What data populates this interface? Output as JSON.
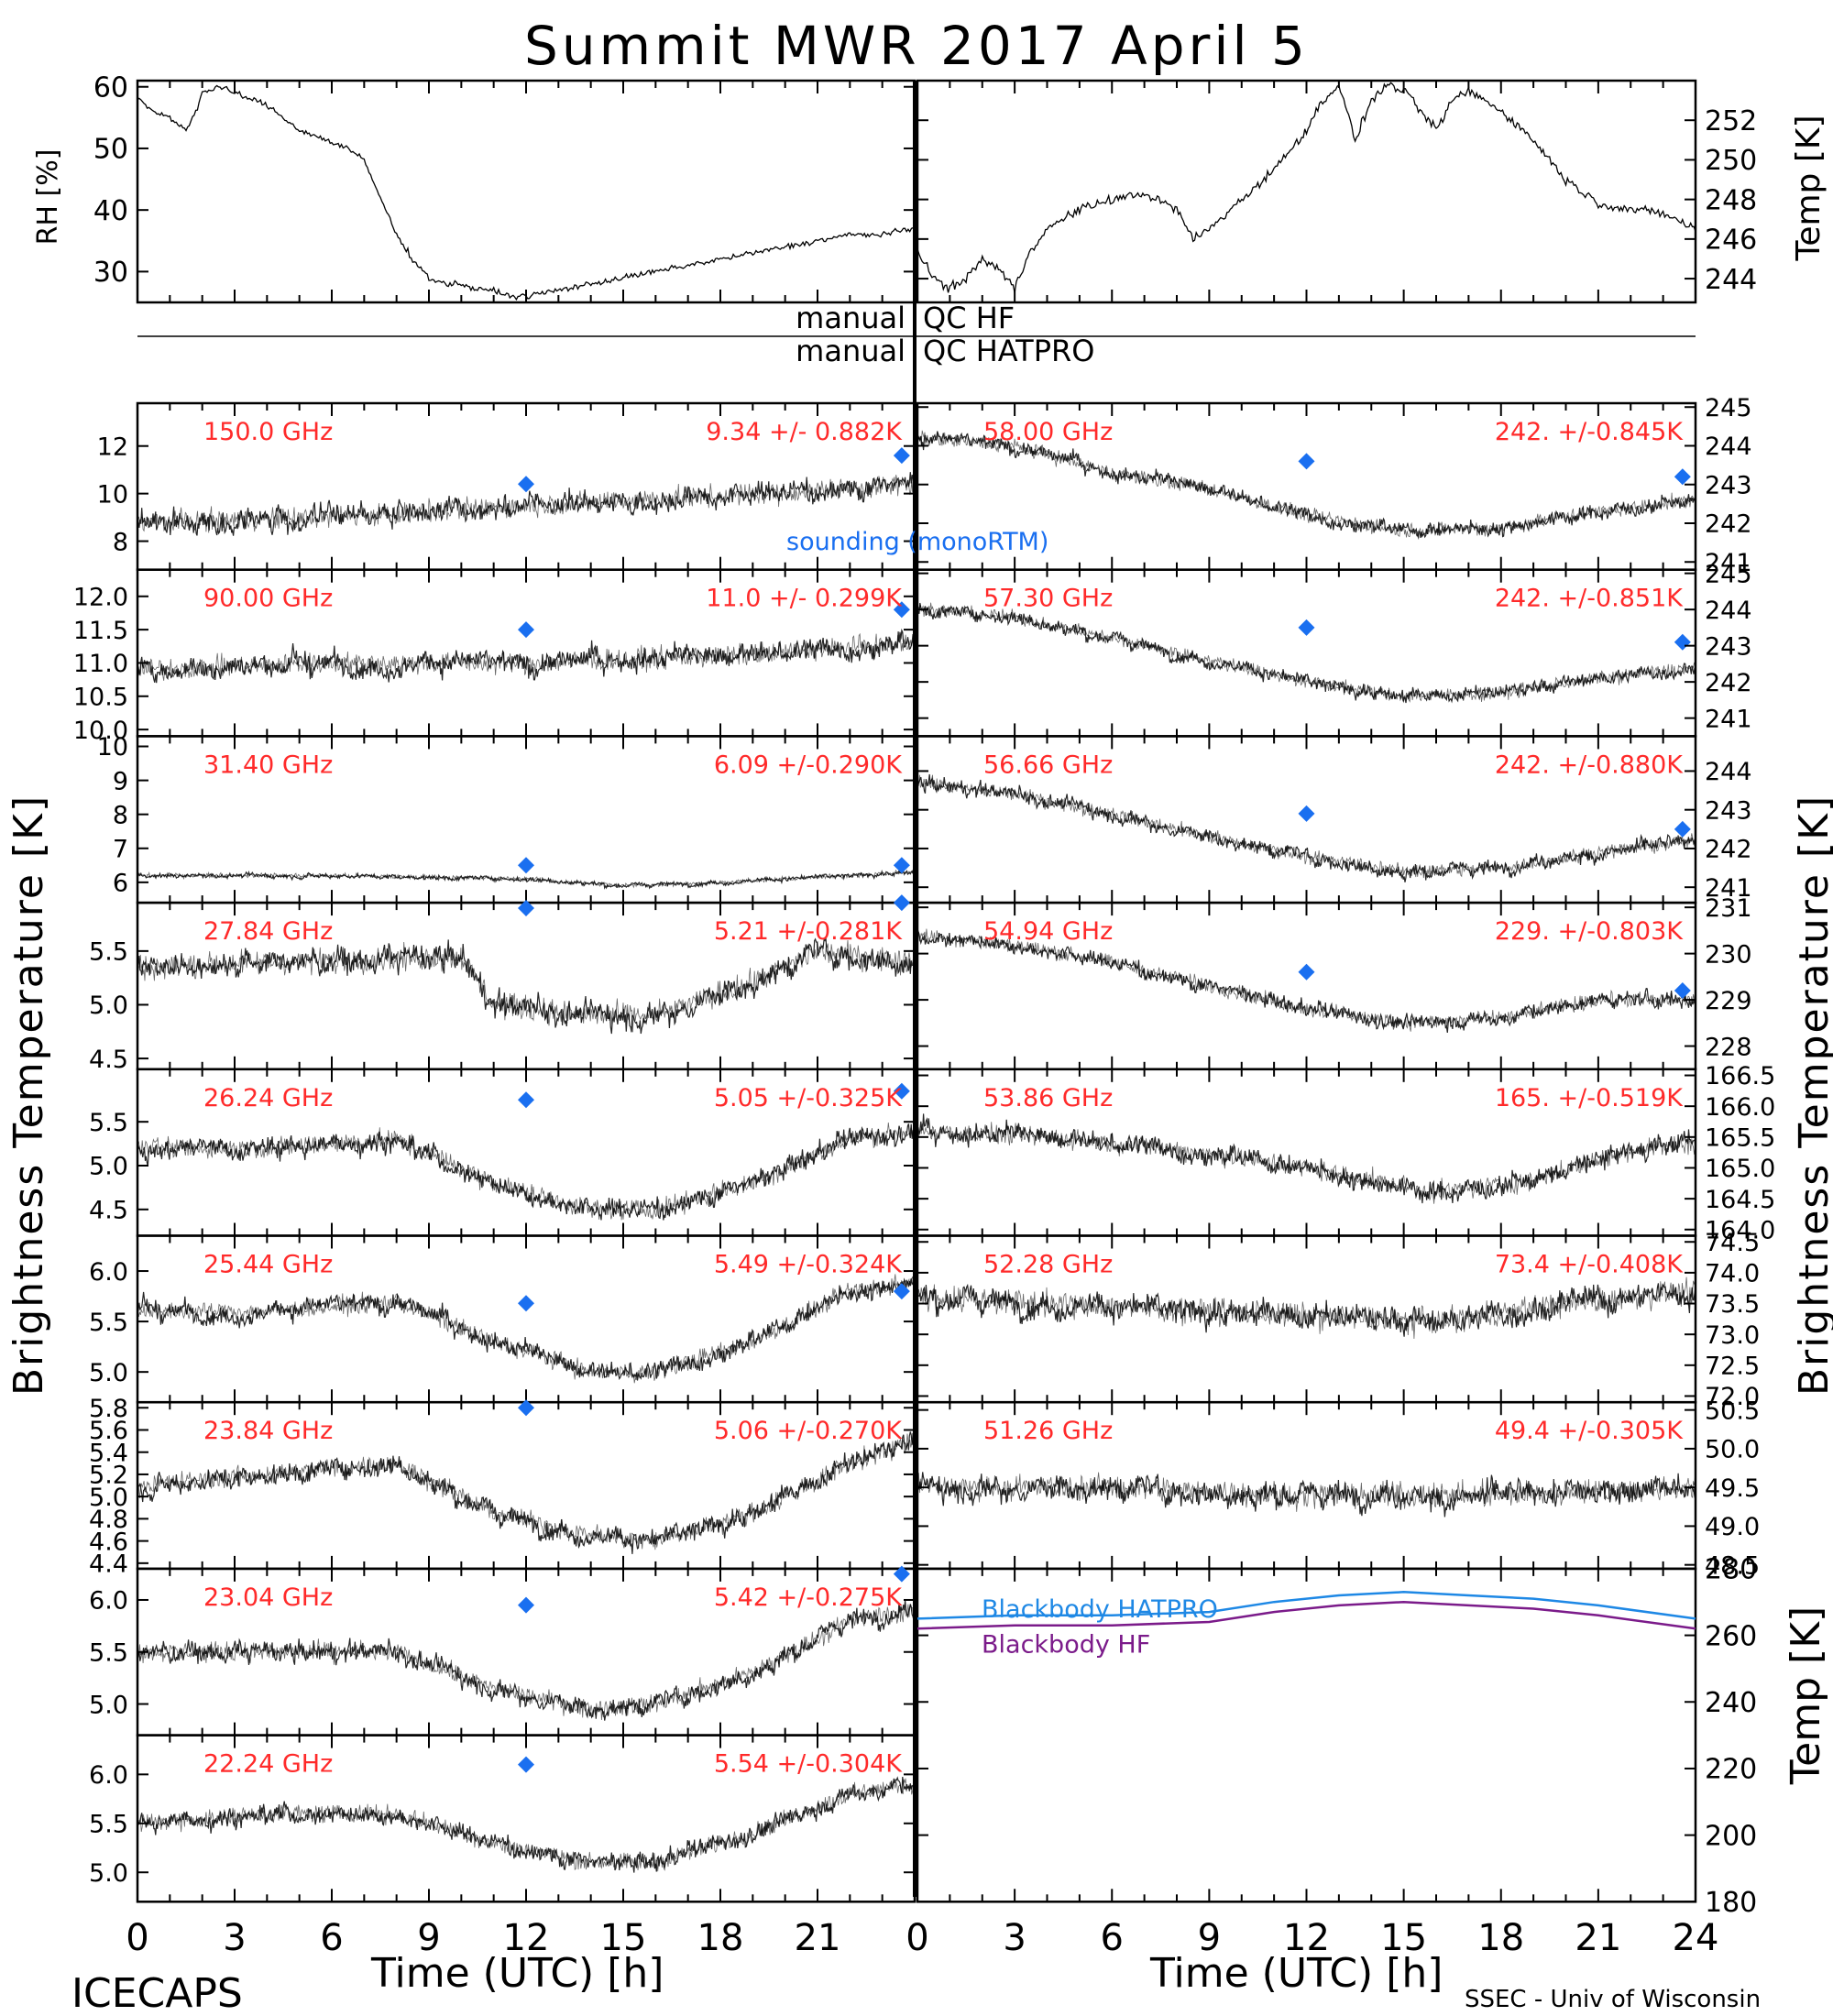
{
  "title": "Summit MWR 2017 April  5",
  "footer": {
    "left": "ICECAPS",
    "right": "SSEC - Univ of Wisconsin",
    "xlabel": "Time (UTC) [h]"
  },
  "side_labels": {
    "left_bt": "Brightness Temperature [K]",
    "right_bt": "Brightness Temperature [K]",
    "top_left": "RH [%]",
    "top_right": "Temp [K]",
    "bottom_right": "Temp [K]"
  },
  "qc": {
    "row1_left": "manual",
    "row1_right": "QC HF",
    "row2_left": "manual",
    "row2_right": "QC HATPRO"
  },
  "colors": {
    "axis": "#000000",
    "annotation": "#ff2a2a",
    "sounding": "#1a6ff0",
    "blackbody_hatpro": "#1e88e5",
    "blackbody_hf": "#7b1b8a"
  },
  "chart_data": [
    {
      "id": "met-rh",
      "type": "line",
      "ylabel": "RH [%]",
      "xlim": [
        0,
        12
      ],
      "ylim": [
        25,
        61
      ],
      "yticks": [
        30,
        40,
        50,
        60
      ],
      "x": [
        0,
        0.5,
        1,
        1.5,
        1.8,
        2,
        2.5,
        3,
        3.5,
        4,
        5,
        6,
        6.5,
        7,
        7.5,
        8,
        8.5,
        9,
        9.5,
        10,
        10.5,
        11,
        11.5,
        12
      ],
      "y": [
        58,
        56,
        55,
        53,
        56,
        59,
        60,
        59,
        58,
        57,
        53,
        51,
        50,
        48,
        42,
        36,
        32,
        29,
        28,
        28,
        27,
        27,
        26,
        26
      ]
    },
    {
      "id": "met-rh-right",
      "type": "line",
      "xlim": [
        12,
        24
      ],
      "ylim": [
        25,
        61
      ],
      "x": [
        12,
        13,
        14,
        15,
        16,
        17,
        18,
        19,
        20,
        21,
        22,
        23,
        24
      ],
      "y": [
        26,
        27,
        28,
        29,
        30,
        31,
        32,
        33,
        34,
        35,
        36,
        36,
        37
      ]
    },
    {
      "id": "met-temp",
      "type": "line",
      "ylabel": "Temp [K]",
      "xlim": [
        0,
        24
      ],
      "ylim": [
        242.8,
        254
      ],
      "yticks": [
        244,
        246,
        248,
        250,
        252
      ],
      "x": [
        0,
        0.5,
        1,
        1.5,
        2,
        2.5,
        3,
        3.5,
        4,
        5,
        6,
        7,
        8,
        8.5,
        9,
        10,
        11,
        12,
        12.5,
        13,
        13.5,
        14,
        14.5,
        15,
        16,
        16.5,
        17,
        18,
        19,
        20,
        21,
        22,
        23,
        24
      ],
      "y": [
        245.5,
        244,
        243.5,
        244,
        245,
        244.5,
        243.5,
        245.5,
        246.5,
        247.5,
        248,
        248.3,
        247.5,
        246,
        246.5,
        248,
        249.5,
        251.5,
        253,
        253.8,
        251,
        253,
        253.8,
        253.5,
        251.5,
        253,
        253.5,
        252.5,
        251,
        249,
        247.8,
        247.5,
        247.3,
        246.5
      ]
    },
    {
      "id": "ch-150",
      "type": "scatter",
      "label": "150.0 GHz",
      "stat": "9.34 +/- 0.882K",
      "ylim": [
        6.8,
        13.8
      ],
      "yticks": [
        8,
        10,
        12
      ],
      "noise": 1.0,
      "trend": {
        "x": [
          0,
          6,
          12,
          18,
          24
        ],
        "y": [
          8.8,
          9.0,
          9.5,
          9.9,
          10.4
        ]
      },
      "sounding": [
        [
          12,
          10.4
        ],
        [
          23.6,
          11.6
        ]
      ]
    },
    {
      "id": "ch-90",
      "type": "scatter",
      "label": "90.00 GHz",
      "stat": "11.0 +/- 0.299K",
      "ylim": [
        9.9,
        12.4
      ],
      "yticks": [
        10.0,
        10.5,
        11.0,
        11.5,
        12.0
      ],
      "noise": 0.35,
      "trend": {
        "x": [
          0,
          6,
          12,
          18,
          24
        ],
        "y": [
          10.9,
          11.0,
          11.0,
          11.1,
          11.3
        ]
      },
      "sounding": [
        [
          12,
          11.5
        ],
        [
          23.6,
          11.8
        ]
      ]
    },
    {
      "id": "ch-31",
      "type": "scatter",
      "label": "31.40 GHz",
      "stat": "6.09 +/-0.290K",
      "ylim": [
        5.4,
        10.3
      ],
      "yticks": [
        6,
        7,
        8,
        9,
        10
      ],
      "noise": 0.15,
      "trend": {
        "x": [
          0,
          6,
          12,
          15,
          18,
          24
        ],
        "y": [
          6.2,
          6.2,
          6.1,
          5.9,
          6.0,
          6.3
        ]
      },
      "sounding": [
        [
          12,
          6.5
        ],
        [
          23.6,
          6.5
        ]
      ]
    },
    {
      "id": "ch-27",
      "type": "scatter",
      "label": "27.84 GHz",
      "stat": "5.21 +/-0.281K",
      "ylim": [
        4.4,
        5.95
      ],
      "yticks": [
        4.5,
        5.0,
        5.5
      ],
      "noise": 0.25,
      "trend": {
        "x": [
          0,
          5,
          10,
          11,
          14,
          16,
          19,
          21,
          24
        ],
        "y": [
          5.35,
          5.4,
          5.45,
          5.0,
          4.9,
          4.9,
          5.2,
          5.5,
          5.4
        ]
      },
      "sounding": [
        [
          12,
          5.9
        ],
        [
          23.6,
          5.95
        ]
      ]
    },
    {
      "id": "ch-26",
      "type": "scatter",
      "label": "26.24 GHz",
      "stat": "5.05 +/-0.325K",
      "ylim": [
        4.2,
        6.1
      ],
      "yticks": [
        4.5,
        5.0,
        5.5
      ],
      "noise": 0.25,
      "trend": {
        "x": [
          0,
          4,
          8,
          11,
          14,
          16,
          19,
          22,
          24
        ],
        "y": [
          5.2,
          5.2,
          5.3,
          4.8,
          4.5,
          4.5,
          4.8,
          5.3,
          5.4
        ]
      },
      "sounding": [
        [
          12,
          5.75
        ],
        [
          23.6,
          5.85
        ]
      ]
    },
    {
      "id": "ch-25",
      "type": "scatter",
      "label": "25.44 GHz",
      "stat": "5.49 +/-0.324K",
      "ylim": [
        4.7,
        6.35
      ],
      "yticks": [
        5.0,
        5.5,
        6.0
      ],
      "noise": 0.2,
      "trend": {
        "x": [
          0,
          4,
          8,
          11,
          14,
          16,
          19,
          22,
          24
        ],
        "y": [
          5.6,
          5.6,
          5.7,
          5.3,
          5.0,
          5.0,
          5.3,
          5.8,
          5.9
        ]
      },
      "sounding": [
        [
          12,
          5.68
        ],
        [
          23.6,
          5.8
        ]
      ]
    },
    {
      "id": "ch-23-8",
      "type": "scatter",
      "label": "23.84 GHz",
      "stat": "5.06 +/-0.270K",
      "ylim": [
        4.35,
        5.85
      ],
      "yticks": [
        4.4,
        4.6,
        4.8,
        5.0,
        5.2,
        5.4,
        5.6,
        5.8
      ],
      "noise": 0.2,
      "trend": {
        "x": [
          0,
          4,
          8,
          11,
          14,
          16,
          19,
          22,
          24
        ],
        "y": [
          5.1,
          5.2,
          5.3,
          4.85,
          4.65,
          4.6,
          4.85,
          5.3,
          5.5
        ]
      },
      "sounding": [
        [
          12,
          5.8
        ]
      ]
    },
    {
      "id": "ch-23-0",
      "type": "scatter",
      "label": "23.04 GHz",
      "stat": "5.42 +/-0.275K",
      "ylim": [
        4.7,
        6.3
      ],
      "yticks": [
        5.0,
        5.5,
        6.0
      ],
      "noise": 0.2,
      "trend": {
        "x": [
          0,
          4,
          8,
          11,
          14,
          16,
          19,
          22,
          24
        ],
        "y": [
          5.5,
          5.5,
          5.5,
          5.15,
          4.95,
          5.0,
          5.3,
          5.8,
          5.9
        ]
      },
      "sounding": [
        [
          12,
          5.95
        ],
        [
          23.6,
          6.25
        ]
      ]
    },
    {
      "id": "ch-22",
      "type": "scatter",
      "label": "22.24 GHz",
      "stat": "5.54 +/-0.304K",
      "ylim": [
        4.7,
        6.4
      ],
      "yticks": [
        5.0,
        5.5,
        6.0
      ],
      "noise": 0.2,
      "trend": {
        "x": [
          0,
          4,
          8,
          11,
          14,
          16,
          19,
          22,
          24
        ],
        "y": [
          5.5,
          5.6,
          5.6,
          5.3,
          5.1,
          5.1,
          5.4,
          5.8,
          5.9
        ]
      },
      "sounding": [
        [
          12,
          6.1
        ]
      ]
    },
    {
      "id": "ch-58",
      "type": "scatter",
      "label": "58.00 GHz",
      "stat": "242. +/-0.845K",
      "ylim": [
        240.8,
        245.1
      ],
      "yticks": [
        241,
        242,
        243,
        244,
        245
      ],
      "noise": 0.4,
      "trend": {
        "x": [
          0,
          3,
          6,
          9,
          12,
          15,
          18,
          21,
          24
        ],
        "y": [
          244.2,
          244.0,
          243.3,
          242.9,
          242.2,
          241.8,
          241.9,
          242.3,
          242.6
        ]
      },
      "sounding": [
        [
          12,
          243.6
        ],
        [
          23.6,
          243.2
        ]
      ]
    },
    {
      "id": "ch-57",
      "type": "scatter",
      "label": "57.30 GHz",
      "stat": "242. +/-0.851K",
      "ylim": [
        240.5,
        245.1
      ],
      "yticks": [
        241,
        242,
        243,
        244,
        245
      ],
      "noise": 0.4,
      "trend": {
        "x": [
          0,
          3,
          6,
          9,
          12,
          15,
          18,
          21,
          24
        ],
        "y": [
          244.0,
          243.8,
          243.2,
          242.6,
          242.0,
          241.6,
          241.7,
          242.1,
          242.4
        ]
      },
      "sounding": [
        [
          12,
          243.5
        ],
        [
          23.6,
          243.1
        ]
      ]
    },
    {
      "id": "ch-56",
      "type": "scatter",
      "label": "56.66 GHz",
      "stat": "242. +/-0.880K",
      "ylim": [
        240.6,
        244.9
      ],
      "yticks": [
        241,
        242,
        243,
        244
      ],
      "noise": 0.4,
      "trend": {
        "x": [
          0,
          3,
          6,
          9,
          12,
          15,
          18,
          21,
          24
        ],
        "y": [
          243.7,
          243.4,
          242.9,
          242.3,
          241.8,
          241.4,
          241.5,
          241.9,
          242.2
        ]
      },
      "sounding": [
        [
          12,
          242.9
        ],
        [
          23.6,
          242.5
        ]
      ]
    },
    {
      "id": "ch-54",
      "type": "scatter",
      "label": "54.94 GHz",
      "stat": "229. +/-0.803K",
      "ylim": [
        227.5,
        231.1
      ],
      "yticks": [
        228,
        229,
        230,
        231
      ],
      "noise": 0.35,
      "trend": {
        "x": [
          0,
          3,
          6,
          9,
          12,
          15,
          18,
          21,
          24
        ],
        "y": [
          230.4,
          230.2,
          229.8,
          229.3,
          228.8,
          228.5,
          228.6,
          229.0,
          229.0
        ]
      },
      "sounding": [
        [
          12,
          229.6
        ],
        [
          23.6,
          229.2
        ]
      ]
    },
    {
      "id": "ch-53",
      "type": "scatter",
      "label": "53.86 GHz",
      "stat": "165. +/-0.519K",
      "ylim": [
        163.9,
        166.6
      ],
      "yticks": [
        164.0,
        164.5,
        165.0,
        165.5,
        166.0,
        166.5
      ],
      "noise": 0.35,
      "trend": {
        "x": [
          0,
          4,
          8,
          12,
          16,
          19,
          22,
          24
        ],
        "y": [
          165.6,
          165.5,
          165.3,
          165.0,
          164.6,
          164.8,
          165.3,
          165.4
        ]
      },
      "sounding": []
    },
    {
      "id": "ch-52",
      "type": "scatter",
      "label": "52.28 GHz",
      "stat": "73.4 +/-0.408K",
      "ylim": [
        71.9,
        74.6
      ],
      "yticks": [
        72.0,
        72.5,
        73.0,
        73.5,
        74.0,
        74.5
      ],
      "noise": 0.45,
      "trend": {
        "x": [
          0,
          4,
          8,
          12,
          16,
          20,
          24
        ],
        "y": [
          73.6,
          73.5,
          73.4,
          73.3,
          73.2,
          73.5,
          73.7
        ]
      },
      "sounding": []
    },
    {
      "id": "ch-51",
      "type": "scatter",
      "label": "51.26 GHz",
      "stat": "49.4 +/-0.305K",
      "ylim": [
        48.45,
        50.6
      ],
      "yticks": [
        48.5,
        49.0,
        49.5,
        50.0,
        50.5
      ],
      "noise": 0.35,
      "trend": {
        "x": [
          0,
          6,
          12,
          18,
          24
        ],
        "y": [
          49.5,
          49.5,
          49.4,
          49.4,
          49.5
        ]
      },
      "sounding": []
    },
    {
      "id": "blackbody",
      "type": "line",
      "ylabel": "Temp [K]",
      "ylim": [
        180,
        280
      ],
      "yticks": [
        180,
        200,
        220,
        240,
        260,
        280
      ],
      "series": [
        {
          "name": "Blackbody HATPRO",
          "x": [
            0,
            3,
            6,
            9,
            11,
            13,
            15,
            17,
            19,
            21,
            24
          ],
          "y": [
            265,
            266,
            266,
            267,
            270,
            272,
            273,
            272,
            271,
            269,
            265
          ]
        },
        {
          "name": "Blackbody HF",
          "x": [
            0,
            3,
            6,
            9,
            11,
            13,
            15,
            17,
            19,
            21,
            24
          ],
          "y": [
            262,
            263,
            263,
            264,
            267,
            269,
            270,
            269,
            268,
            266,
            262
          ]
        }
      ]
    }
  ],
  "x_axis": {
    "left_ticks": [
      "0",
      "3",
      "6",
      "9",
      "12",
      "15",
      "18",
      "21"
    ],
    "right_ticks": [
      "0",
      "3",
      "6",
      "9",
      "12",
      "15",
      "18",
      "21",
      "24"
    ]
  },
  "legend_sounding": "sounding (monoRTM)"
}
